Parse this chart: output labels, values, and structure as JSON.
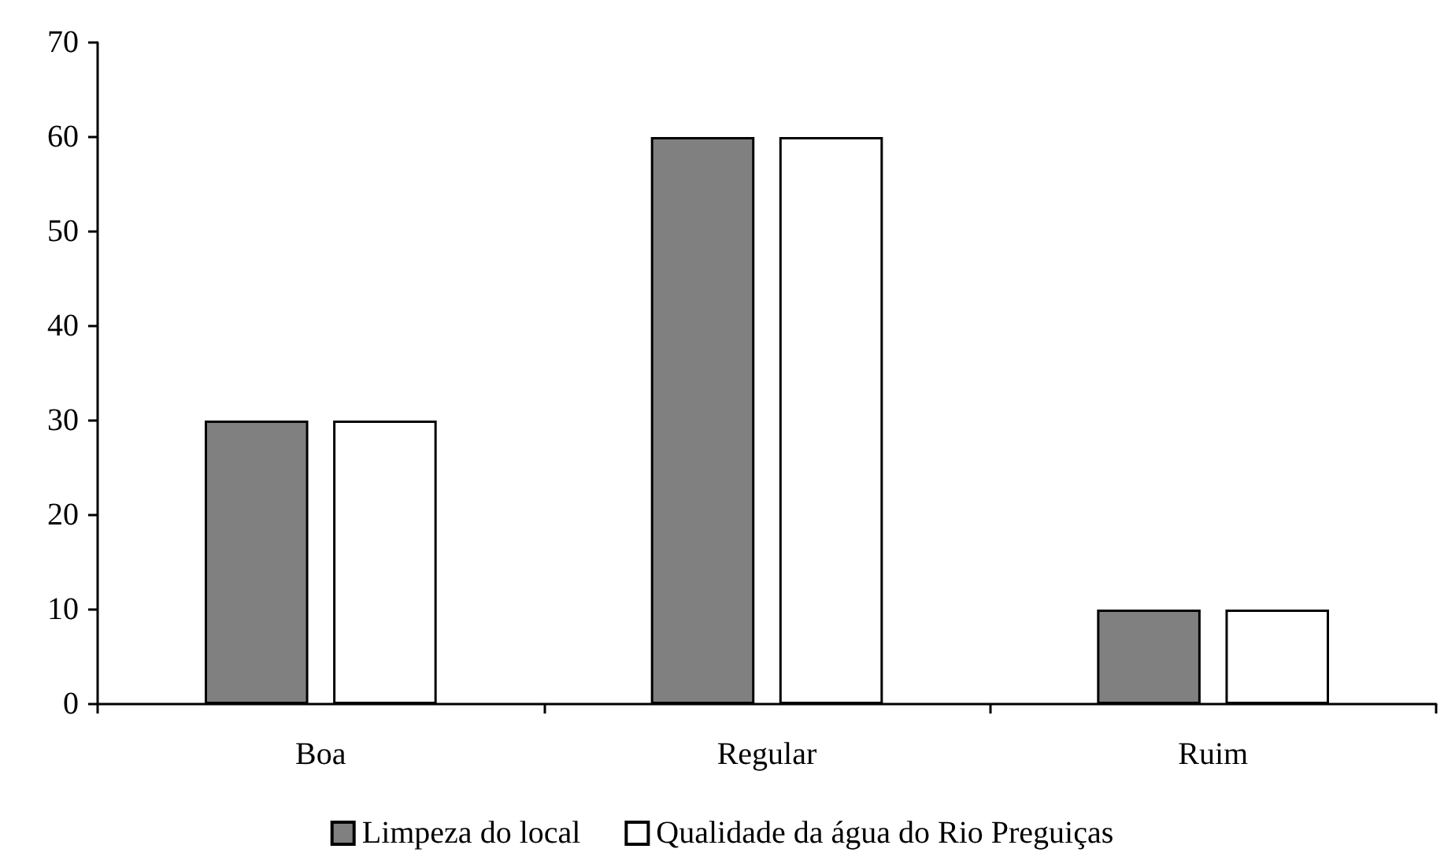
{
  "chart_data": {
    "type": "bar",
    "categories": [
      "Boa",
      "Regular",
      "Ruim"
    ],
    "series": [
      {
        "name": "Limpeza do local",
        "color": "#808080",
        "values": [
          30,
          60,
          10
        ]
      },
      {
        "name": "Qualidade da água do Rio Preguiças",
        "color": "#ffffff",
        "values": [
          30,
          60,
          10
        ]
      }
    ],
    "ylim": [
      0,
      70
    ],
    "yticks": [
      0,
      10,
      20,
      30,
      40,
      50,
      60,
      70
    ],
    "grid": false,
    "legend": "bottom"
  }
}
